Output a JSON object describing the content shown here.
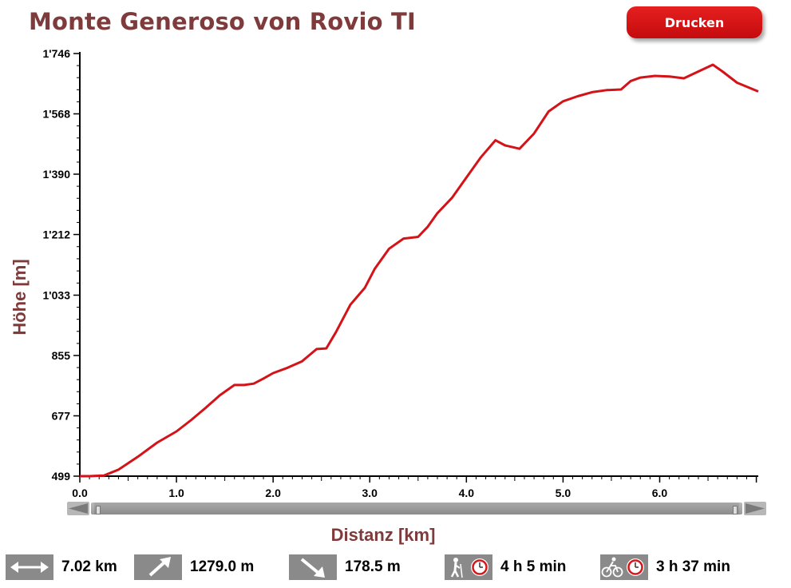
{
  "page": {
    "title": "Monte Generoso von Rovio TI",
    "print_label": "Drucken"
  },
  "colors": {
    "title": "#7f3b3b",
    "line": "#d41318",
    "button": "#d5161a",
    "icon_bg": "#8a8a8a"
  },
  "chart_data": {
    "type": "line",
    "title": "Monte Generoso von Rovio TI",
    "xlabel": "Distanz [km]",
    "ylabel": "Höhe [m]",
    "xlim": [
      0,
      7.02
    ],
    "ylim": [
      499,
      1746
    ],
    "x_ticks": [
      "0.0",
      "1.0",
      "2.0",
      "3.0",
      "4.0",
      "5.0",
      "6.0"
    ],
    "x_tick_values": [
      0,
      1,
      2,
      3,
      4,
      5,
      6
    ],
    "y_ticks": [
      "499",
      "677",
      "855",
      "1'033",
      "1'212",
      "1'390",
      "1'568",
      "1'746"
    ],
    "y_tick_values": [
      499,
      677,
      855,
      1033,
      1212,
      1390,
      1568,
      1746
    ],
    "grid": false,
    "series": [
      {
        "x": [
          0.0,
          0.1,
          0.25,
          0.4,
          0.6,
          0.8,
          1.0,
          1.15,
          1.3,
          1.45,
          1.6,
          1.7,
          1.8,
          1.9,
          2.0,
          2.15,
          2.3,
          2.45,
          2.55,
          2.65,
          2.8,
          2.95,
          3.05,
          3.2,
          3.35,
          3.5,
          3.6,
          3.7,
          3.85,
          4.0,
          4.15,
          4.3,
          4.4,
          4.55,
          4.7,
          4.85,
          5.0,
          5.15,
          5.3,
          5.45,
          5.6,
          5.7,
          5.8,
          5.95,
          6.1,
          6.25,
          6.4,
          6.55,
          6.65,
          6.8,
          7.02
        ],
        "values": [
          499,
          499,
          501,
          518,
          556,
          598,
          631,
          664,
          700,
          738,
          768,
          768,
          772,
          787,
          803,
          819,
          838,
          874,
          876,
          924,
          1005,
          1055,
          1110,
          1170,
          1200,
          1205,
          1235,
          1275,
          1320,
          1380,
          1440,
          1490,
          1475,
          1465,
          1510,
          1575,
          1605,
          1620,
          1632,
          1638,
          1640,
          1665,
          1675,
          1680,
          1678,
          1673,
          1693,
          1713,
          1693,
          1660,
          1634
        ]
      }
    ]
  },
  "scrollbar": {
    "left_arrow": "arrow-left-icon",
    "right_arrow": "arrow-right-icon"
  },
  "stats": {
    "distance": {
      "icon": "distance-arrows-icon",
      "value": "7.02 km"
    },
    "ascent": {
      "icon": "ascent-arrow-icon",
      "value": "1279.0 m"
    },
    "descent": {
      "icon": "descent-arrow-icon",
      "value": "178.5 m"
    },
    "hiking_time": {
      "icon": "hiker-clock-icon",
      "value": "4 h 5 min"
    },
    "biking_time": {
      "icon": "cyclist-clock-icon",
      "value": "3 h 37 min"
    }
  }
}
